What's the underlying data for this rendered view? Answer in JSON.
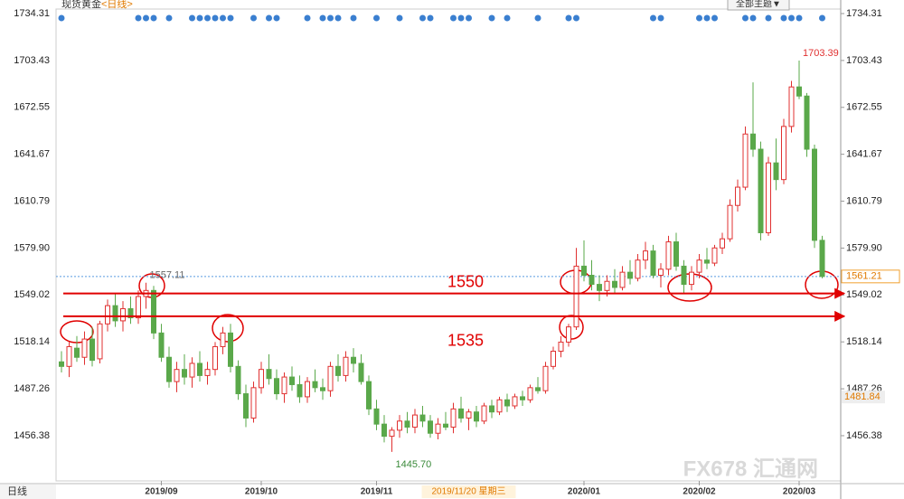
{
  "chart_data": {
    "type": "candlestick",
    "title": "现货黄金",
    "period": "<日线>",
    "period_button": "日线",
    "theme_button": "全部主题▼",
    "watermark": "FX678 汇通网",
    "up_color": "#e03030",
    "down_color": "#5aa84a",
    "ylim": [
      1426.6,
      1734.31
    ],
    "yticks": [
      1734.31,
      1703.43,
      1672.55,
      1641.67,
      1610.79,
      {
        "value": 1579.9,
        "label": "1579.90"
      },
      1549.02,
      1518.14,
      1487.26,
      1456.38
    ],
    "xticks": [
      {
        "value": 13,
        "label": "2019/09"
      },
      {
        "value": 26,
        "label": "2019/10"
      },
      {
        "value": 41,
        "label": "2019/11"
      },
      {
        "value": 68,
        "label": "2020/01"
      },
      {
        "value": 83,
        "label": "2020/02"
      },
      {
        "value": 96,
        "label": "2020/03"
      }
    ],
    "crosshair_date": {
      "value": 53,
      "label": "2019/11/20 星期三"
    },
    "annotations": [
      {
        "index": 11,
        "text": "1557.11"
      },
      {
        "index": 43,
        "text": "1445.70"
      },
      {
        "index": 96,
        "text": "1703.39"
      }
    ],
    "levels": [
      1550,
      1535
    ],
    "last_price": 1561.21,
    "cursor_price": 1481.84,
    "candles": [
      [
        1505,
        1512,
        1498,
        1502
      ],
      [
        1502,
        1518,
        1495,
        1515
      ],
      [
        1514,
        1522,
        1505,
        1508
      ],
      [
        1508,
        1525,
        1503,
        1520
      ],
      [
        1520,
        1528,
        1502,
        1506
      ],
      [
        1507,
        1532,
        1504,
        1530
      ],
      [
        1530,
        1546,
        1525,
        1542
      ],
      [
        1542,
        1550,
        1528,
        1532
      ],
      [
        1532,
        1545,
        1525,
        1540
      ],
      [
        1540,
        1548,
        1530,
        1534
      ],
      [
        1534,
        1552,
        1530,
        1548
      ],
      [
        1548,
        1557.11,
        1540,
        1552
      ],
      [
        1552,
        1555,
        1520,
        1524
      ],
      [
        1524,
        1530,
        1505,
        1508
      ],
      [
        1508,
        1515,
        1488,
        1492
      ],
      [
        1492,
        1505,
        1485,
        1500
      ],
      [
        1500,
        1510,
        1490,
        1495
      ],
      [
        1495,
        1508,
        1488,
        1504
      ],
      [
        1504,
        1512,
        1492,
        1496
      ],
      [
        1496,
        1505,
        1490,
        1500
      ],
      [
        1500,
        1518,
        1496,
        1515
      ],
      [
        1515,
        1528,
        1510,
        1524
      ],
      [
        1524,
        1530,
        1498,
        1502
      ],
      [
        1502,
        1506,
        1480,
        1484
      ],
      [
        1484,
        1490,
        1462,
        1468
      ],
      [
        1468,
        1492,
        1465,
        1488
      ],
      [
        1488,
        1505,
        1484,
        1500
      ],
      [
        1500,
        1510,
        1490,
        1494
      ],
      [
        1494,
        1500,
        1480,
        1484
      ],
      [
        1484,
        1498,
        1478,
        1495
      ],
      [
        1495,
        1502,
        1486,
        1490
      ],
      [
        1490,
        1496,
        1478,
        1482
      ],
      [
        1482,
        1495,
        1478,
        1492
      ],
      [
        1492,
        1500,
        1485,
        1488
      ],
      [
        1488,
        1494,
        1480,
        1486
      ],
      [
        1486,
        1505,
        1482,
        1502
      ],
      [
        1502,
        1510,
        1492,
        1496
      ],
      [
        1496,
        1512,
        1492,
        1508
      ],
      [
        1508,
        1514,
        1498,
        1504
      ],
      [
        1504,
        1510,
        1490,
        1492
      ],
      [
        1492,
        1496,
        1470,
        1474
      ],
      [
        1474,
        1480,
        1460,
        1464
      ],
      [
        1464,
        1470,
        1452,
        1456
      ],
      [
        1456,
        1462,
        1445.7,
        1460
      ],
      [
        1460,
        1470,
        1455,
        1466
      ],
      [
        1466,
        1472,
        1458,
        1462
      ],
      [
        1462,
        1474,
        1458,
        1470
      ],
      [
        1470,
        1476,
        1462,
        1466
      ],
      [
        1466,
        1470,
        1455,
        1458
      ],
      [
        1458,
        1468,
        1454,
        1464
      ],
      [
        1464,
        1472,
        1460,
        1462
      ],
      [
        1462,
        1478,
        1458,
        1474
      ],
      [
        1474,
        1482,
        1465,
        1468
      ],
      [
        1468,
        1474,
        1460,
        1472
      ],
      [
        1472,
        1476,
        1462,
        1466
      ],
      [
        1466,
        1478,
        1464,
        1476
      ],
      [
        1476,
        1480,
        1468,
        1472
      ],
      [
        1472,
        1482,
        1470,
        1480
      ],
      [
        1480,
        1484,
        1472,
        1476
      ],
      [
        1476,
        1484,
        1474,
        1482
      ],
      [
        1482,
        1486,
        1476,
        1480
      ],
      [
        1480,
        1490,
        1478,
        1488
      ],
      [
        1488,
        1495,
        1484,
        1486
      ],
      [
        1486,
        1505,
        1484,
        1502
      ],
      [
        1502,
        1515,
        1500,
        1512
      ],
      [
        1512,
        1522,
        1508,
        1518
      ],
      [
        1518,
        1530,
        1515,
        1528
      ],
      [
        1528,
        1580,
        1526,
        1568
      ],
      [
        1568,
        1585,
        1558,
        1562
      ],
      [
        1562,
        1572,
        1552,
        1556
      ],
      [
        1556,
        1562,
        1545,
        1552
      ],
      [
        1552,
        1562,
        1548,
        1558
      ],
      [
        1558,
        1566,
        1550,
        1554
      ],
      [
        1554,
        1568,
        1552,
        1564
      ],
      [
        1564,
        1572,
        1556,
        1560
      ],
      [
        1560,
        1576,
        1558,
        1572
      ],
      [
        1572,
        1584,
        1566,
        1578
      ],
      [
        1578,
        1582,
        1560,
        1562
      ],
      [
        1562,
        1570,
        1554,
        1566
      ],
      [
        1566,
        1588,
        1562,
        1584
      ],
      [
        1584,
        1590,
        1565,
        1568
      ],
      [
        1568,
        1572,
        1550,
        1556
      ],
      [
        1556,
        1568,
        1552,
        1564
      ],
      [
        1564,
        1576,
        1560,
        1572
      ],
      [
        1572,
        1580,
        1566,
        1570
      ],
      [
        1570,
        1582,
        1568,
        1580
      ],
      [
        1580,
        1590,
        1576,
        1586
      ],
      [
        1586,
        1612,
        1584,
        1608
      ],
      [
        1608,
        1625,
        1604,
        1620
      ],
      [
        1620,
        1660,
        1618,
        1655
      ],
      [
        1655,
        1689,
        1640,
        1645
      ],
      [
        1645,
        1650,
        1585,
        1590
      ],
      [
        1590,
        1640,
        1588,
        1636
      ],
      [
        1636,
        1652,
        1618,
        1625
      ],
      [
        1625,
        1665,
        1622,
        1660
      ],
      [
        1660,
        1690,
        1656,
        1686
      ],
      [
        1686,
        1703.39,
        1678,
        1680
      ],
      [
        1680,
        1682,
        1640,
        1645
      ],
      [
        1645,
        1648,
        1580,
        1585
      ],
      [
        1585,
        1588,
        1560,
        1561.21
      ]
    ]
  }
}
